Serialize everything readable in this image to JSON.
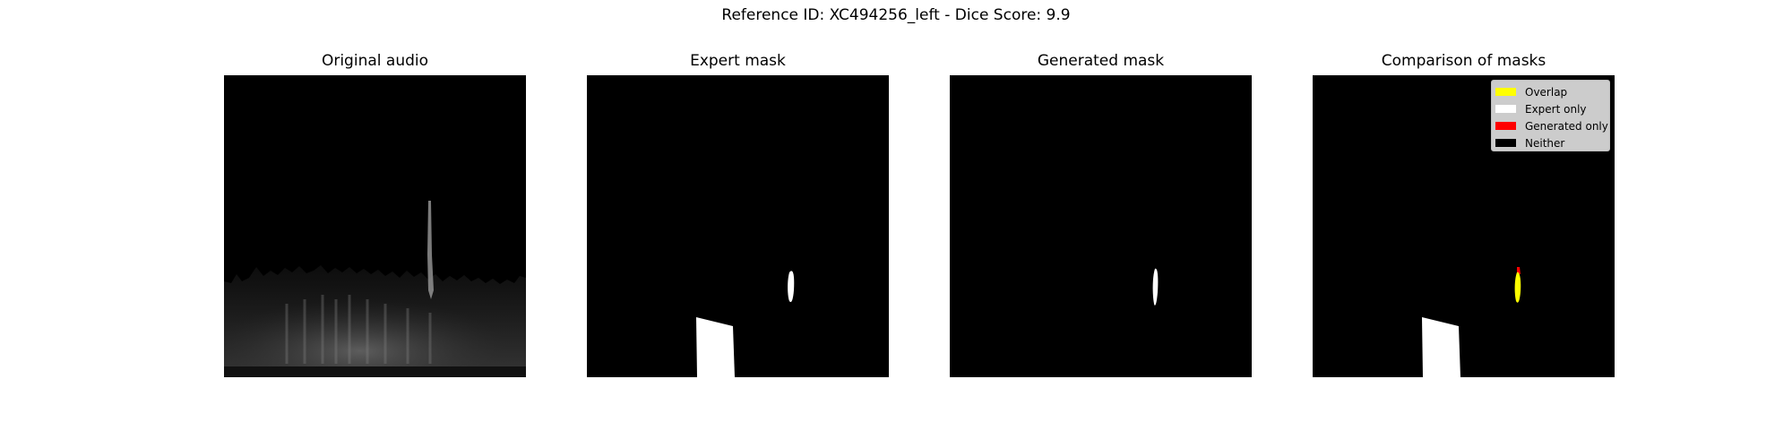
{
  "figure": {
    "title": "Reference ID: XC494256_left - Dice Score: 9.9"
  },
  "panels": [
    {
      "title": "Original audio"
    },
    {
      "title": "Expert mask"
    },
    {
      "title": "Generated mask"
    },
    {
      "title": "Comparison of masks"
    }
  ],
  "legend": {
    "items": [
      {
        "label": "Overlap",
        "color": "#ffff00"
      },
      {
        "label": "Expert only",
        "color": "#ffffff"
      },
      {
        "label": "Generated only",
        "color": "#ff0000"
      },
      {
        "label": "Neither",
        "color": "#000000"
      }
    ]
  },
  "colors": {
    "background": "#000000",
    "mask": "#ffffff",
    "overlap": "#ffff00",
    "generated_only": "#ff0000"
  }
}
